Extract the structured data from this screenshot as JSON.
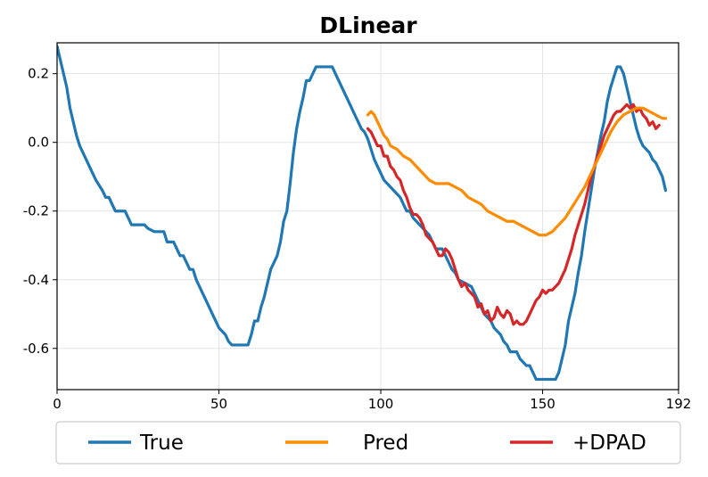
{
  "chart_data": {
    "type": "line",
    "title": "DLinear",
    "xlabel": "",
    "ylabel": "",
    "xlim": [
      0,
      192
    ],
    "ylim": [
      -0.72,
      0.29
    ],
    "x_ticks": [
      0,
      50,
      100,
      150,
      192
    ],
    "y_ticks": [
      -0.6,
      -0.4,
      -0.2,
      0.0,
      0.2
    ],
    "x_tick_labels": [
      "0",
      "50",
      "100",
      "150",
      "192"
    ],
    "y_tick_labels": [
      "-0.6",
      "-0.4",
      "-0.2",
      "0.0",
      "0.2"
    ],
    "grid": true,
    "legend_position": "bottom, outside plot",
    "series": [
      {
        "name": "True",
        "color": "#1f77b4",
        "points": [
          [
            0,
            0.28
          ],
          [
            1,
            0.24
          ],
          [
            2,
            0.2
          ],
          [
            3,
            0.16
          ],
          [
            4,
            0.1
          ],
          [
            5,
            0.06
          ],
          [
            6,
            0.02
          ],
          [
            7,
            -0.01
          ],
          [
            8,
            -0.03
          ],
          [
            10,
            -0.07
          ],
          [
            12,
            -0.11
          ],
          [
            14,
            -0.14
          ],
          [
            15,
            -0.16
          ],
          [
            16,
            -0.16
          ],
          [
            17,
            -0.18
          ],
          [
            18,
            -0.2
          ],
          [
            20,
            -0.2
          ],
          [
            21,
            -0.2
          ],
          [
            22,
            -0.22
          ],
          [
            23,
            -0.24
          ],
          [
            25,
            -0.24
          ],
          [
            27,
            -0.24
          ],
          [
            28,
            -0.25
          ],
          [
            30,
            -0.26
          ],
          [
            33,
            -0.26
          ],
          [
            34,
            -0.29
          ],
          [
            36,
            -0.29
          ],
          [
            37,
            -0.31
          ],
          [
            38,
            -0.33
          ],
          [
            39,
            -0.33
          ],
          [
            40,
            -0.35
          ],
          [
            41,
            -0.37
          ],
          [
            42,
            -0.37
          ],
          [
            43,
            -0.4
          ],
          [
            44,
            -0.42
          ],
          [
            45,
            -0.44
          ],
          [
            46,
            -0.46
          ],
          [
            47,
            -0.48
          ],
          [
            48,
            -0.5
          ],
          [
            49,
            -0.52
          ],
          [
            50,
            -0.54
          ],
          [
            52,
            -0.56
          ],
          [
            53,
            -0.58
          ],
          [
            54,
            -0.59
          ],
          [
            56,
            -0.59
          ],
          [
            59,
            -0.59
          ],
          [
            60,
            -0.56
          ],
          [
            61,
            -0.52
          ],
          [
            62,
            -0.52
          ],
          [
            63,
            -0.48
          ],
          [
            64,
            -0.45
          ],
          [
            65,
            -0.41
          ],
          [
            66,
            -0.37
          ],
          [
            67,
            -0.35
          ],
          [
            68,
            -0.33
          ],
          [
            69,
            -0.29
          ],
          [
            70,
            -0.23
          ],
          [
            71,
            -0.2
          ],
          [
            72,
            -0.12
          ],
          [
            73,
            -0.03
          ],
          [
            74,
            0.04
          ],
          [
            75,
            0.09
          ],
          [
            76,
            0.13
          ],
          [
            77,
            0.18
          ],
          [
            78,
            0.18
          ],
          [
            79,
            0.2
          ],
          [
            80,
            0.22
          ],
          [
            81,
            0.22
          ],
          [
            83,
            0.22
          ],
          [
            85,
            0.22
          ],
          [
            86,
            0.2
          ],
          [
            88,
            0.16
          ],
          [
            90,
            0.12
          ],
          [
            92,
            0.08
          ],
          [
            94,
            0.04
          ],
          [
            95,
            0.03
          ],
          [
            96,
            0.01
          ],
          [
            97,
            -0.02
          ],
          [
            98,
            -0.05
          ],
          [
            99,
            -0.07
          ],
          [
            100,
            -0.09
          ],
          [
            101,
            -0.11
          ],
          [
            102,
            -0.12
          ],
          [
            104,
            -0.14
          ],
          [
            106,
            -0.16
          ],
          [
            107,
            -0.18
          ],
          [
            108,
            -0.2
          ],
          [
            109,
            -0.2
          ],
          [
            110,
            -0.22
          ],
          [
            112,
            -0.24
          ],
          [
            114,
            -0.26
          ],
          [
            115,
            -0.27
          ],
          [
            116,
            -0.29
          ],
          [
            117,
            -0.31
          ],
          [
            119,
            -0.31
          ],
          [
            120,
            -0.33
          ],
          [
            121,
            -0.35
          ],
          [
            122,
            -0.37
          ],
          [
            123,
            -0.38
          ],
          [
            124,
            -0.4
          ],
          [
            126,
            -0.41
          ],
          [
            128,
            -0.42
          ],
          [
            129,
            -0.44
          ],
          [
            130,
            -0.46
          ],
          [
            131,
            -0.48
          ],
          [
            132,
            -0.5
          ],
          [
            134,
            -0.52
          ],
          [
            135,
            -0.54
          ],
          [
            137,
            -0.56
          ],
          [
            138,
            -0.58
          ],
          [
            139,
            -0.59
          ],
          [
            140,
            -0.61
          ],
          [
            142,
            -0.61
          ],
          [
            143,
            -0.63
          ],
          [
            145,
            -0.65
          ],
          [
            146,
            -0.65
          ],
          [
            147,
            -0.67
          ],
          [
            148,
            -0.69
          ],
          [
            150,
            -0.69
          ],
          [
            152,
            -0.69
          ],
          [
            154,
            -0.69
          ],
          [
            155,
            -0.67
          ],
          [
            156,
            -0.63
          ],
          [
            157,
            -0.59
          ],
          [
            158,
            -0.52
          ],
          [
            159,
            -0.48
          ],
          [
            160,
            -0.44
          ],
          [
            161,
            -0.38
          ],
          [
            162,
            -0.33
          ],
          [
            163,
            -0.26
          ],
          [
            164,
            -0.2
          ],
          [
            165,
            -0.14
          ],
          [
            166,
            -0.08
          ],
          [
            167,
            -0.03
          ],
          [
            168,
            0.02
          ],
          [
            169,
            0.06
          ],
          [
            170,
            0.12
          ],
          [
            171,
            0.16
          ],
          [
            172,
            0.19
          ],
          [
            173,
            0.22
          ],
          [
            174,
            0.22
          ],
          [
            175,
            0.2
          ],
          [
            176,
            0.16
          ],
          [
            177,
            0.12
          ],
          [
            178,
            0.08
          ],
          [
            179,
            0.04
          ],
          [
            180,
            0.01
          ],
          [
            181,
            -0.01
          ],
          [
            183,
            -0.03
          ],
          [
            184,
            -0.05
          ],
          [
            185,
            -0.06
          ],
          [
            186,
            -0.08
          ],
          [
            187,
            -0.1
          ],
          [
            188,
            -0.14
          ]
        ]
      },
      {
        "name": "Pred",
        "color": "#ff8c00",
        "points": [
          [
            96,
            0.08
          ],
          [
            97,
            0.09
          ],
          [
            98,
            0.08
          ],
          [
            99,
            0.06
          ],
          [
            100,
            0.04
          ],
          [
            101,
            0.02
          ],
          [
            102,
            0.01
          ],
          [
            103,
            -0.01
          ],
          [
            105,
            -0.02
          ],
          [
            107,
            -0.04
          ],
          [
            109,
            -0.05
          ],
          [
            111,
            -0.07
          ],
          [
            113,
            -0.09
          ],
          [
            115,
            -0.11
          ],
          [
            117,
            -0.12
          ],
          [
            119,
            -0.12
          ],
          [
            121,
            -0.12
          ],
          [
            123,
            -0.13
          ],
          [
            125,
            -0.14
          ],
          [
            127,
            -0.16
          ],
          [
            129,
            -0.17
          ],
          [
            131,
            -0.18
          ],
          [
            133,
            -0.2
          ],
          [
            135,
            -0.21
          ],
          [
            137,
            -0.22
          ],
          [
            139,
            -0.23
          ],
          [
            141,
            -0.23
          ],
          [
            143,
            -0.24
          ],
          [
            145,
            -0.25
          ],
          [
            147,
            -0.26
          ],
          [
            149,
            -0.27
          ],
          [
            151,
            -0.27
          ],
          [
            153,
            -0.26
          ],
          [
            155,
            -0.24
          ],
          [
            157,
            -0.22
          ],
          [
            159,
            -0.19
          ],
          [
            161,
            -0.16
          ],
          [
            163,
            -0.13
          ],
          [
            165,
            -0.09
          ],
          [
            167,
            -0.05
          ],
          [
            169,
            -0.01
          ],
          [
            171,
            0.03
          ],
          [
            173,
            0.06
          ],
          [
            175,
            0.08
          ],
          [
            177,
            0.09
          ],
          [
            179,
            0.1
          ],
          [
            181,
            0.1
          ],
          [
            183,
            0.09
          ],
          [
            185,
            0.08
          ],
          [
            187,
            0.07
          ],
          [
            188,
            0.07
          ]
        ]
      },
      {
        "name": "+DPAD",
        "color": "#d62728",
        "points": [
          [
            96,
            0.04
          ],
          [
            97,
            0.03
          ],
          [
            98,
            0.01
          ],
          [
            99,
            -0.01
          ],
          [
            100,
            -0.01
          ],
          [
            101,
            -0.04
          ],
          [
            102,
            -0.04
          ],
          [
            103,
            -0.07
          ],
          [
            104,
            -0.08
          ],
          [
            105,
            -0.1
          ],
          [
            106,
            -0.11
          ],
          [
            107,
            -0.14
          ],
          [
            108,
            -0.16
          ],
          [
            109,
            -0.19
          ],
          [
            110,
            -0.21
          ],
          [
            111,
            -0.21
          ],
          [
            112,
            -0.22
          ],
          [
            113,
            -0.24
          ],
          [
            114,
            -0.27
          ],
          [
            115,
            -0.28
          ],
          [
            116,
            -0.29
          ],
          [
            117,
            -0.31
          ],
          [
            118,
            -0.33
          ],
          [
            119,
            -0.33
          ],
          [
            120,
            -0.31
          ],
          [
            121,
            -0.32
          ],
          [
            122,
            -0.34
          ],
          [
            123,
            -0.37
          ],
          [
            124,
            -0.4
          ],
          [
            125,
            -0.42
          ],
          [
            126,
            -0.41
          ],
          [
            127,
            -0.43
          ],
          [
            128,
            -0.44
          ],
          [
            129,
            -0.45
          ],
          [
            130,
            -0.48
          ],
          [
            131,
            -0.47
          ],
          [
            132,
            -0.5
          ],
          [
            133,
            -0.49
          ],
          [
            134,
            -0.52
          ],
          [
            135,
            -0.51
          ],
          [
            136,
            -0.48
          ],
          [
            137,
            -0.5
          ],
          [
            138,
            -0.51
          ],
          [
            139,
            -0.49
          ],
          [
            140,
            -0.5
          ],
          [
            141,
            -0.53
          ],
          [
            142,
            -0.52
          ],
          [
            143,
            -0.53
          ],
          [
            144,
            -0.53
          ],
          [
            145,
            -0.52
          ],
          [
            146,
            -0.5
          ],
          [
            147,
            -0.48
          ],
          [
            148,
            -0.46
          ],
          [
            149,
            -0.45
          ],
          [
            150,
            -0.43
          ],
          [
            151,
            -0.44
          ],
          [
            152,
            -0.43
          ],
          [
            153,
            -0.43
          ],
          [
            154,
            -0.42
          ],
          [
            155,
            -0.41
          ],
          [
            156,
            -0.39
          ],
          [
            157,
            -0.37
          ],
          [
            158,
            -0.34
          ],
          [
            159,
            -0.31
          ],
          [
            160,
            -0.27
          ],
          [
            161,
            -0.24
          ],
          [
            162,
            -0.21
          ],
          [
            163,
            -0.18
          ],
          [
            164,
            -0.14
          ],
          [
            165,
            -0.1
          ],
          [
            166,
            -0.07
          ],
          [
            167,
            -0.04
          ],
          [
            168,
            -0.01
          ],
          [
            169,
            0.02
          ],
          [
            170,
            0.04
          ],
          [
            171,
            0.06
          ],
          [
            172,
            0.08
          ],
          [
            173,
            0.09
          ],
          [
            174,
            0.09
          ],
          [
            175,
            0.1
          ],
          [
            176,
            0.11
          ],
          [
            177,
            0.1
          ],
          [
            178,
            0.11
          ],
          [
            179,
            0.09
          ],
          [
            180,
            0.1
          ],
          [
            181,
            0.08
          ],
          [
            182,
            0.07
          ],
          [
            183,
            0.05
          ],
          [
            184,
            0.06
          ],
          [
            185,
            0.04
          ],
          [
            186,
            0.05
          ]
        ]
      }
    ]
  }
}
